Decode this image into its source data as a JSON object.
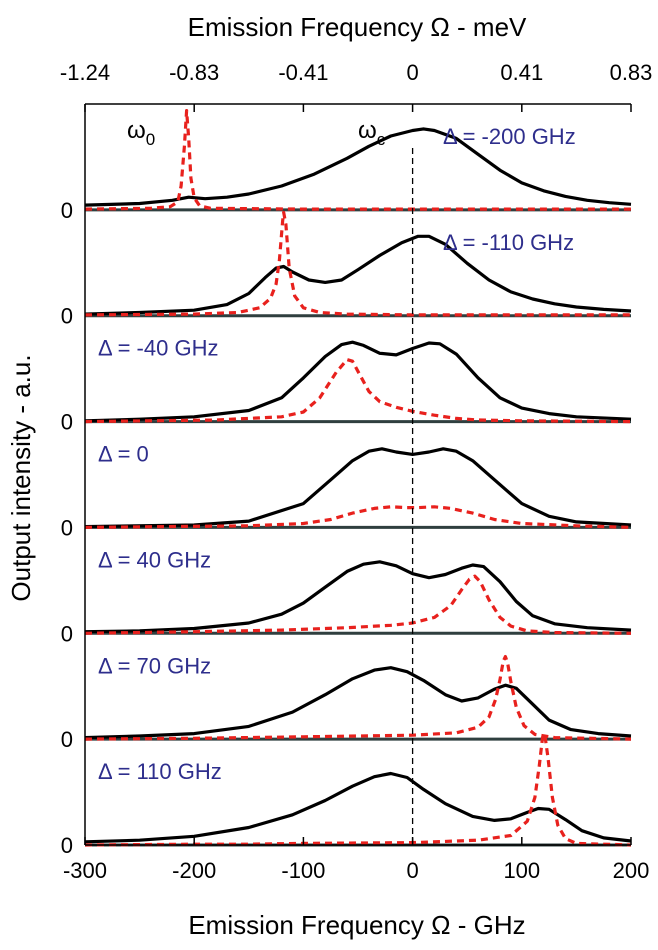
{
  "chart_data": {
    "type": "line",
    "title": "",
    "xlabel": "Emission Frequency Ω - GHz",
    "ylabel": "Output intensity - a.u.",
    "top_xlabel": "Emission Frequency Ω - meV",
    "xlim": [
      -300,
      200
    ],
    "x_ticks": [
      "-300",
      "-200",
      "-100",
      "0",
      "100",
      "200"
    ],
    "top_ticks": [
      {
        "x": -300,
        "label": "-1.24"
      },
      {
        "x": -200,
        "label": "-0.83"
      },
      {
        "x": -100,
        "label": "-0.41"
      },
      {
        "x": 0,
        "label": "0"
      },
      {
        "x": 100,
        "label": "0.41"
      },
      {
        "x": 200,
        "label": "0.83"
      }
    ],
    "zero_label": "0",
    "markers": {
      "omega0": "ω",
      "omega0_sub": "0",
      "omegac": "ω",
      "omegac_sub": "c"
    },
    "colors": {
      "black_series": "#000000",
      "red_series": "#e8211d",
      "panel_label": "#2e2e8c",
      "baseline": "#2f3f3f"
    },
    "legend": "none",
    "grid": false,
    "series_styles": [
      {
        "name": "",
        "style": "solid",
        "color": "#000000"
      },
      {
        "name": "",
        "style": "dashed",
        "color": "#e8211d"
      }
    ],
    "panels": [
      {
        "label": "Δ = -200 GHz",
        "label_pos": "right",
        "black": [
          [
            -300,
            0.06
          ],
          [
            -250,
            0.08
          ],
          [
            -220,
            0.12
          ],
          [
            -205,
            0.16
          ],
          [
            -190,
            0.14
          ],
          [
            -170,
            0.16
          ],
          [
            -150,
            0.2
          ],
          [
            -120,
            0.3
          ],
          [
            -90,
            0.45
          ],
          [
            -60,
            0.65
          ],
          [
            -40,
            0.8
          ],
          [
            -20,
            0.93
          ],
          [
            0,
            1.0
          ],
          [
            10,
            1.02
          ],
          [
            20,
            1.0
          ],
          [
            40,
            0.9
          ],
          [
            60,
            0.7
          ],
          [
            80,
            0.5
          ],
          [
            100,
            0.34
          ],
          [
            120,
            0.24
          ],
          [
            140,
            0.17
          ],
          [
            160,
            0.12
          ],
          [
            180,
            0.09
          ],
          [
            200,
            0.07
          ]
        ],
        "red": [
          [
            -300,
            0.01
          ],
          [
            -240,
            0.02
          ],
          [
            -222,
            0.04
          ],
          [
            -215,
            0.1
          ],
          [
            -212,
            0.3
          ],
          [
            -209,
            0.8
          ],
          [
            -207,
            1.25
          ],
          [
            -205,
            0.9
          ],
          [
            -203,
            0.4
          ],
          [
            -200,
            0.15
          ],
          [
            -195,
            0.05
          ],
          [
            -185,
            0.02
          ],
          [
            -100,
            0.01
          ],
          [
            0,
            0.01
          ],
          [
            200,
            0.01
          ]
        ]
      },
      {
        "label": "Δ = -110 GHz",
        "label_pos": "right",
        "black": [
          [
            -300,
            0.02
          ],
          [
            -250,
            0.04
          ],
          [
            -200,
            0.07
          ],
          [
            -170,
            0.14
          ],
          [
            -150,
            0.28
          ],
          [
            -135,
            0.48
          ],
          [
            -125,
            0.6
          ],
          [
            -118,
            0.62
          ],
          [
            -110,
            0.55
          ],
          [
            -95,
            0.45
          ],
          [
            -80,
            0.42
          ],
          [
            -65,
            0.45
          ],
          [
            -50,
            0.58
          ],
          [
            -30,
            0.76
          ],
          [
            -10,
            0.92
          ],
          [
            5,
            1.0
          ],
          [
            15,
            1.0
          ],
          [
            30,
            0.9
          ],
          [
            50,
            0.66
          ],
          [
            70,
            0.45
          ],
          [
            90,
            0.3
          ],
          [
            110,
            0.21
          ],
          [
            130,
            0.15
          ],
          [
            150,
            0.11
          ],
          [
            175,
            0.08
          ],
          [
            200,
            0.06
          ]
        ],
        "red": [
          [
            -300,
            0.01
          ],
          [
            -200,
            0.02
          ],
          [
            -160,
            0.04
          ],
          [
            -140,
            0.1
          ],
          [
            -130,
            0.22
          ],
          [
            -125,
            0.4
          ],
          [
            -122,
            0.7
          ],
          [
            -119,
            1.2
          ],
          [
            -118,
            1.3
          ],
          [
            -116,
            1.15
          ],
          [
            -113,
            0.6
          ],
          [
            -108,
            0.25
          ],
          [
            -100,
            0.1
          ],
          [
            -85,
            0.04
          ],
          [
            -60,
            0.02
          ],
          [
            0,
            0.01
          ],
          [
            200,
            0.01
          ]
        ]
      },
      {
        "label": "Δ = -40 GHz",
        "label_pos": "left",
        "black": [
          [
            -300,
            0.01
          ],
          [
            -250,
            0.03
          ],
          [
            -200,
            0.06
          ],
          [
            -150,
            0.14
          ],
          [
            -120,
            0.3
          ],
          [
            -100,
            0.55
          ],
          [
            -80,
            0.82
          ],
          [
            -65,
            0.97
          ],
          [
            -55,
            1.0
          ],
          [
            -45,
            0.96
          ],
          [
            -30,
            0.86
          ],
          [
            -15,
            0.84
          ],
          [
            0,
            0.92
          ],
          [
            15,
            0.99
          ],
          [
            25,
            0.98
          ],
          [
            40,
            0.85
          ],
          [
            60,
            0.55
          ],
          [
            80,
            0.3
          ],
          [
            100,
            0.17
          ],
          [
            125,
            0.1
          ],
          [
            150,
            0.06
          ],
          [
            200,
            0.03
          ]
        ],
        "red": [
          [
            -300,
            0.0
          ],
          [
            -180,
            0.02
          ],
          [
            -120,
            0.06
          ],
          [
            -100,
            0.12
          ],
          [
            -85,
            0.3
          ],
          [
            -70,
            0.62
          ],
          [
            -60,
            0.78
          ],
          [
            -55,
            0.76
          ],
          [
            -48,
            0.58
          ],
          [
            -40,
            0.38
          ],
          [
            -30,
            0.25
          ],
          [
            -15,
            0.18
          ],
          [
            0,
            0.13
          ],
          [
            20,
            0.08
          ],
          [
            40,
            0.04
          ],
          [
            60,
            0.02
          ],
          [
            100,
            0.01
          ],
          [
            200,
            0.0
          ]
        ]
      },
      {
        "label": "Δ = 0",
        "label_pos": "left",
        "black": [
          [
            -300,
            0.01
          ],
          [
            -200,
            0.03
          ],
          [
            -150,
            0.08
          ],
          [
            -100,
            0.3
          ],
          [
            -75,
            0.6
          ],
          [
            -55,
            0.84
          ],
          [
            -40,
            0.96
          ],
          [
            -28,
            0.99
          ],
          [
            -15,
            0.95
          ],
          [
            0,
            0.92
          ],
          [
            15,
            0.95
          ],
          [
            28,
            0.99
          ],
          [
            40,
            0.96
          ],
          [
            55,
            0.84
          ],
          [
            75,
            0.6
          ],
          [
            100,
            0.3
          ],
          [
            125,
            0.14
          ],
          [
            150,
            0.07
          ],
          [
            200,
            0.03
          ]
        ],
        "red": [
          [
            -300,
            0.0
          ],
          [
            -150,
            0.02
          ],
          [
            -100,
            0.05
          ],
          [
            -75,
            0.1
          ],
          [
            -55,
            0.18
          ],
          [
            -35,
            0.24
          ],
          [
            -20,
            0.26
          ],
          [
            -5,
            0.25
          ],
          [
            5,
            0.25
          ],
          [
            20,
            0.26
          ],
          [
            35,
            0.24
          ],
          [
            55,
            0.18
          ],
          [
            75,
            0.1
          ],
          [
            100,
            0.05
          ],
          [
            150,
            0.02
          ],
          [
            200,
            0.0
          ]
        ]
      },
      {
        "label": "Δ = 40 GHz",
        "label_pos": "left",
        "black": [
          [
            -300,
            0.02
          ],
          [
            -250,
            0.03
          ],
          [
            -200,
            0.06
          ],
          [
            -150,
            0.13
          ],
          [
            -120,
            0.24
          ],
          [
            -100,
            0.38
          ],
          [
            -80,
            0.58
          ],
          [
            -60,
            0.78
          ],
          [
            -45,
            0.87
          ],
          [
            -30,
            0.9
          ],
          [
            -15,
            0.85
          ],
          [
            0,
            0.75
          ],
          [
            15,
            0.7
          ],
          [
            30,
            0.74
          ],
          [
            45,
            0.82
          ],
          [
            55,
            0.86
          ],
          [
            65,
            0.84
          ],
          [
            80,
            0.65
          ],
          [
            95,
            0.4
          ],
          [
            110,
            0.22
          ],
          [
            130,
            0.12
          ],
          [
            160,
            0.07
          ],
          [
            200,
            0.04
          ]
        ],
        "red": [
          [
            -300,
            0.0
          ],
          [
            -200,
            0.02
          ],
          [
            -120,
            0.04
          ],
          [
            -60,
            0.07
          ],
          [
            -20,
            0.1
          ],
          [
            0,
            0.13
          ],
          [
            20,
            0.2
          ],
          [
            35,
            0.35
          ],
          [
            45,
            0.55
          ],
          [
            52,
            0.68
          ],
          [
            57,
            0.72
          ],
          [
            62,
            0.65
          ],
          [
            70,
            0.42
          ],
          [
            80,
            0.2
          ],
          [
            90,
            0.09
          ],
          [
            105,
            0.03
          ],
          [
            130,
            0.01
          ],
          [
            200,
            0.0
          ]
        ]
      },
      {
        "label": "Δ = 70 GHz",
        "label_pos": "left",
        "black": [
          [
            -300,
            0.02
          ],
          [
            -250,
            0.04
          ],
          [
            -200,
            0.07
          ],
          [
            -150,
            0.16
          ],
          [
            -110,
            0.34
          ],
          [
            -80,
            0.56
          ],
          [
            -55,
            0.76
          ],
          [
            -35,
            0.87
          ],
          [
            -20,
            0.9
          ],
          [
            -5,
            0.85
          ],
          [
            10,
            0.74
          ],
          [
            30,
            0.56
          ],
          [
            45,
            0.48
          ],
          [
            60,
            0.52
          ],
          [
            75,
            0.63
          ],
          [
            85,
            0.68
          ],
          [
            95,
            0.64
          ],
          [
            110,
            0.44
          ],
          [
            125,
            0.24
          ],
          [
            145,
            0.12
          ],
          [
            170,
            0.07
          ],
          [
            200,
            0.04
          ]
        ],
        "red": [
          [
            -300,
            0.0
          ],
          [
            -200,
            0.01
          ],
          [
            -100,
            0.03
          ],
          [
            0,
            0.05
          ],
          [
            40,
            0.08
          ],
          [
            60,
            0.15
          ],
          [
            70,
            0.28
          ],
          [
            76,
            0.5
          ],
          [
            80,
            0.75
          ],
          [
            83,
            0.98
          ],
          [
            85,
            1.04
          ],
          [
            87,
            0.96
          ],
          [
            90,
            0.72
          ],
          [
            95,
            0.4
          ],
          [
            102,
            0.17
          ],
          [
            112,
            0.06
          ],
          [
            130,
            0.02
          ],
          [
            200,
            0.0
          ]
        ]
      },
      {
        "label": "Δ = 110 GHz",
        "label_pos": "left",
        "black": [
          [
            -300,
            0.04
          ],
          [
            -250,
            0.06
          ],
          [
            -200,
            0.11
          ],
          [
            -150,
            0.22
          ],
          [
            -110,
            0.38
          ],
          [
            -80,
            0.56
          ],
          [
            -55,
            0.74
          ],
          [
            -35,
            0.86
          ],
          [
            -20,
            0.9
          ],
          [
            -5,
            0.85
          ],
          [
            10,
            0.7
          ],
          [
            30,
            0.52
          ],
          [
            55,
            0.36
          ],
          [
            75,
            0.31
          ],
          [
            90,
            0.33
          ],
          [
            105,
            0.41
          ],
          [
            115,
            0.46
          ],
          [
            125,
            0.45
          ],
          [
            140,
            0.32
          ],
          [
            155,
            0.18
          ],
          [
            175,
            0.09
          ],
          [
            200,
            0.05
          ]
        ],
        "red": [
          [
            -300,
            0.0
          ],
          [
            -200,
            0.01
          ],
          [
            -150,
            0.01
          ],
          [
            -100,
            0.02
          ],
          [
            0,
            0.03
          ],
          [
            60,
            0.06
          ],
          [
            90,
            0.12
          ],
          [
            105,
            0.3
          ],
          [
            112,
            0.6
          ],
          [
            116,
            1.0
          ],
          [
            119,
            1.35
          ],
          [
            121,
            1.4
          ],
          [
            124,
            1.1
          ],
          [
            128,
            0.6
          ],
          [
            133,
            0.25
          ],
          [
            140,
            0.08
          ],
          [
            150,
            0.02
          ],
          [
            200,
            0.0
          ]
        ]
      }
    ]
  }
}
